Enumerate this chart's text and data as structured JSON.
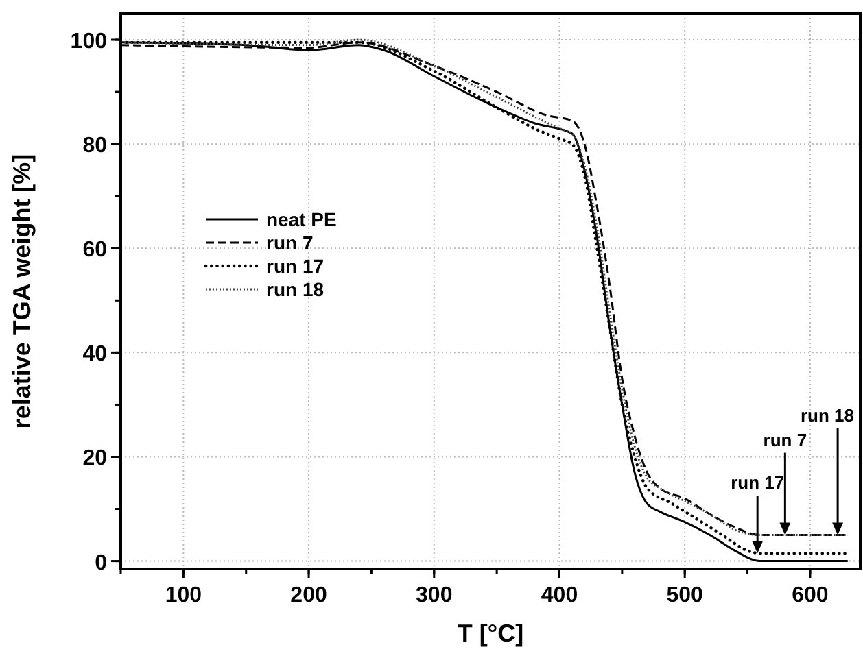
{
  "chart_data": {
    "type": "line",
    "xlabel": "T [°C]",
    "ylabel": "relative TGA weight [%]",
    "xlim": [
      50,
      640
    ],
    "ylim": [
      -1.5,
      105
    ],
    "xticks": [
      100,
      200,
      300,
      400,
      500,
      600
    ],
    "yticks": [
      0,
      20,
      40,
      60,
      80,
      100
    ],
    "grid": true,
    "legend": "left",
    "series": [
      {
        "name": "neat PE",
        "color": "#000000",
        "line_style": "solid",
        "x": [
          50,
          150,
          200,
          240,
          260,
          300,
          350,
          380,
          410,
          420,
          430,
          440,
          450,
          460,
          470,
          480,
          500,
          520,
          540,
          560,
          630
        ],
        "values": [
          99.5,
          99,
          98,
          99,
          98,
          93,
          87,
          84,
          82,
          75,
          62,
          45,
          30,
          17,
          11,
          9.5,
          7.5,
          5,
          2,
          0,
          0
        ]
      },
      {
        "name": "run 7",
        "color": "#000000",
        "line_style": "dashed",
        "x": [
          50,
          200,
          240,
          300,
          350,
          390,
          410,
          420,
          430,
          440,
          450,
          460,
          470,
          480,
          500,
          520,
          540,
          560,
          600,
          630
        ],
        "values": [
          99,
          98.5,
          99.5,
          95,
          90,
          85.5,
          84.5,
          80,
          68,
          53,
          35,
          24,
          17,
          14,
          12,
          9,
          6.5,
          5,
          5,
          5
        ]
      },
      {
        "name": "run 17",
        "color": "#000000",
        "line_style": "dotted",
        "x": [
          50,
          240,
          300,
          350,
          380,
          400,
          410,
          420,
          430,
          440,
          450,
          460,
          470,
          490,
          510,
          530,
          550,
          560,
          630
        ],
        "values": [
          99.5,
          99.5,
          94,
          87,
          83,
          81,
          80,
          74,
          60,
          45,
          30,
          20,
          14,
          11,
          8,
          5,
          2,
          1.5,
          1.5
        ]
      },
      {
        "name": "run 18",
        "color": "#444444",
        "line_style": "dotted",
        "x": [
          50,
          200,
          240,
          300,
          350,
          400,
          410,
          420,
          430,
          440,
          450,
          460,
          470,
          480,
          500,
          520,
          540,
          560,
          630
        ],
        "values": [
          99.5,
          99,
          100,
          95,
          89,
          83,
          82,
          76,
          64,
          48,
          33,
          22,
          16,
          14,
          11.5,
          9,
          6,
          5,
          5
        ]
      }
    ],
    "annotations": [
      {
        "text": "run 17",
        "x": 558,
        "y": 1.5
      },
      {
        "text": "run 7",
        "x": 580,
        "y": 5
      },
      {
        "text": "run 18",
        "x": 622,
        "y": 5
      }
    ]
  }
}
